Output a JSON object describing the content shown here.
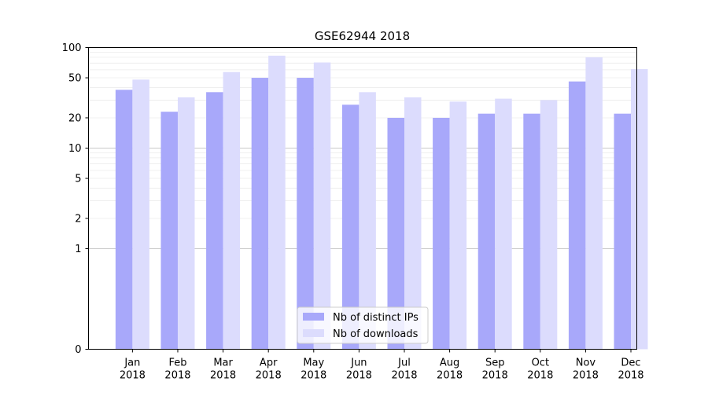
{
  "chart_data": {
    "type": "bar",
    "title": "GSE62944 2018",
    "xlabel": "",
    "ylabel": "",
    "yscale": "symlog",
    "ylim": [
      0,
      100
    ],
    "yticks": [
      0,
      1,
      2,
      5,
      10,
      20,
      50,
      100
    ],
    "grid": true,
    "legend_position": "bottom-center",
    "categories": [
      [
        "Jan",
        "2018"
      ],
      [
        "Feb",
        "2018"
      ],
      [
        "Mar",
        "2018"
      ],
      [
        "Apr",
        "2018"
      ],
      [
        "May",
        "2018"
      ],
      [
        "Jun",
        "2018"
      ],
      [
        "Jul",
        "2018"
      ],
      [
        "Aug",
        "2018"
      ],
      [
        "Sep",
        "2018"
      ],
      [
        "Oct",
        "2018"
      ],
      [
        "Nov",
        "2018"
      ],
      [
        "Dec",
        "2018"
      ]
    ],
    "series": [
      {
        "name": "Nb of distinct IPs",
        "color": "#a8a8fa",
        "values": [
          38,
          23,
          36,
          50,
          50,
          27,
          20,
          20,
          22,
          22,
          46,
          22
        ]
      },
      {
        "name": "Nb of downloads",
        "color": "#dcdcfd",
        "values": [
          48,
          32,
          57,
          83,
          71,
          36,
          32,
          29,
          31,
          30,
          80,
          61
        ]
      }
    ]
  }
}
